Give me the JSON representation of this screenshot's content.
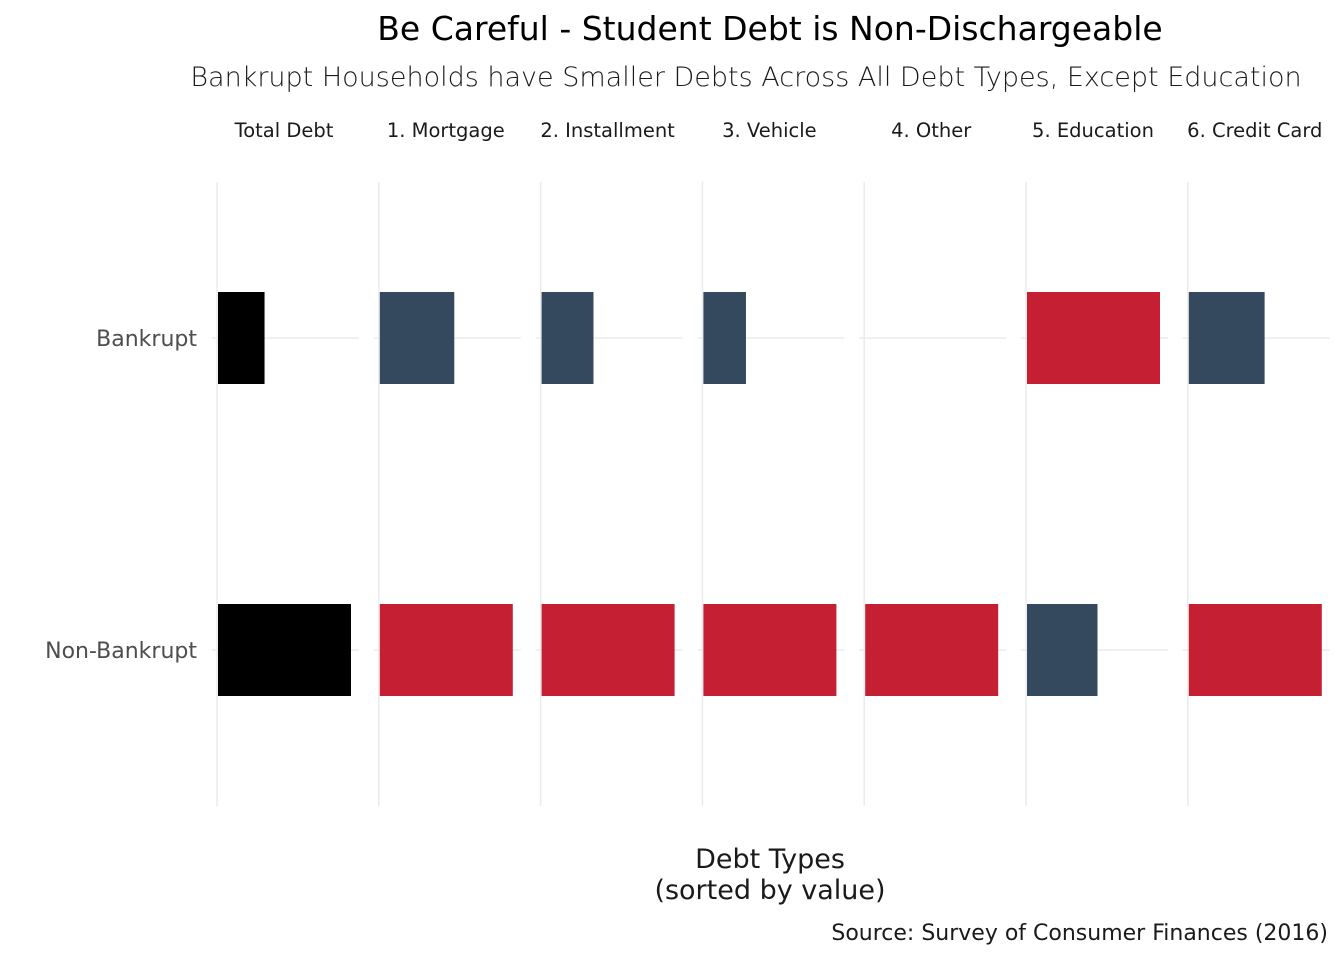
{
  "chart_data": {
    "type": "bar",
    "orientation": "horizontal",
    "faceted": true,
    "title": "Be Careful - Student Debt is Non-Dischargeable",
    "subtitle": "Bankrupt Households have Smaller Debts Across All Debt Types, Except Education",
    "xlabel_line1": "Debt Types",
    "xlabel_line2": "(sorted by value)",
    "caption": "Source: Survey of Consumer Finances (2016)",
    "categories": [
      "Bankrupt",
      "Non-Bankrupt"
    ],
    "facets": [
      {
        "label": "Total Debt",
        "values": [
          0.35,
          1.0
        ]
      },
      {
        "label": "1. Mortgage",
        "values": [
          0.56,
          1.0
        ]
      },
      {
        "label": "2. Installment",
        "values": [
          0.39,
          1.0
        ]
      },
      {
        "label": "3. Vehicle",
        "values": [
          0.32,
          1.0
        ]
      },
      {
        "label": "4. Other",
        "values": [
          0.0,
          1.0
        ]
      },
      {
        "label": "5. Education",
        "values": [
          1.0,
          0.53
        ]
      },
      {
        "label": "6. Credit Card",
        "values": [
          0.57,
          1.0
        ]
      }
    ],
    "relative_scale": true,
    "axis_ticks_shown": false,
    "grid": true,
    "colors": {
      "total": "#000000",
      "larger": "#C41F33",
      "smaller": "#34495E",
      "grid": "#EBEBEB"
    }
  }
}
